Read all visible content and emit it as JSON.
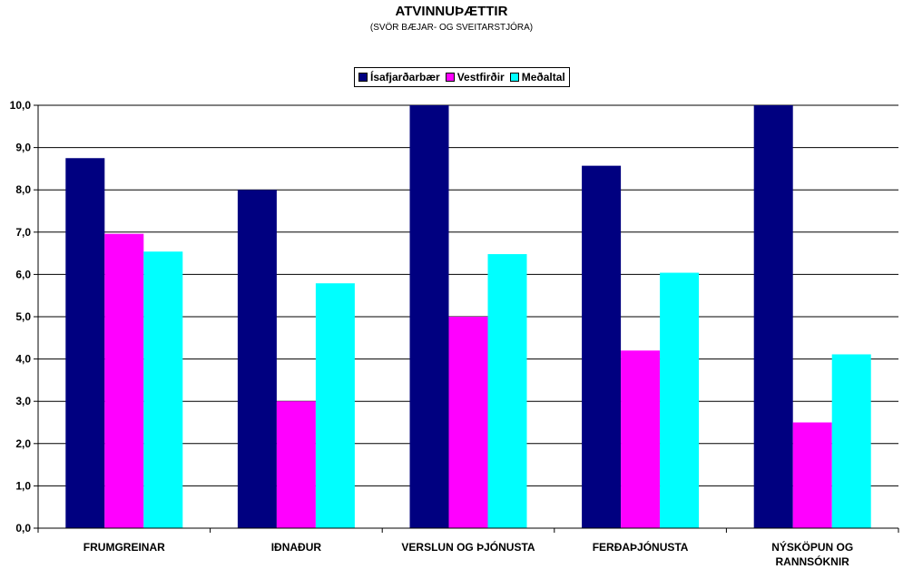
{
  "chart_data": {
    "type": "bar",
    "title": "ATVINNUÞÆTTIR",
    "subtitle": "(SVÖR BÆJAR- OG SVEITARSTJÓRA)",
    "categories": [
      [
        "FRUMGREINAR"
      ],
      [
        "IÐNAÐUR"
      ],
      [
        "VERSLUN OG ÞJÓNUSTA"
      ],
      [
        "FERÐAÞJÓNUSTA"
      ],
      [
        "NÝSKÖPUN OG",
        "RANNSÓKNIR"
      ]
    ],
    "series": [
      {
        "name": "Ísafjarðarbær",
        "color": "#000080",
        "values": [
          8.75,
          8.0,
          10.0,
          8.57,
          10.0
        ]
      },
      {
        "name": "Vestfirðir",
        "color": "#FF00FF",
        "values": [
          6.96,
          3.0,
          5.0,
          4.2,
          2.5
        ]
      },
      {
        "name": "Meðaltal",
        "color": "#00FFFF",
        "values": [
          6.54,
          5.79,
          6.48,
          6.04,
          4.11
        ]
      }
    ],
    "ylim": [
      0,
      10
    ],
    "yticks": [
      "0,0",
      "1,0",
      "2,0",
      "3,0",
      "4,0",
      "5,0",
      "6,0",
      "7,0",
      "8,0",
      "9,0",
      "10,0"
    ],
    "grid": true,
    "legend_position": "top-center"
  }
}
